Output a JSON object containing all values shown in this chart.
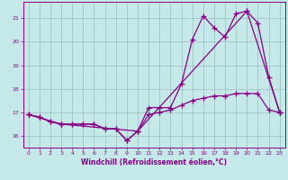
{
  "xlabel": "Windchill (Refroidissement éolien,°C)",
  "xlim": [
    -0.5,
    23.5
  ],
  "ylim": [
    15.5,
    21.7
  ],
  "yticks": [
    16,
    17,
    18,
    19,
    20,
    21
  ],
  "xticks": [
    0,
    1,
    2,
    3,
    4,
    5,
    6,
    7,
    8,
    9,
    10,
    11,
    12,
    13,
    14,
    15,
    16,
    17,
    18,
    19,
    20,
    21,
    22,
    23
  ],
  "bg_color": "#c5e8e8",
  "grid_color": "#9bbcbc",
  "line_color": "#880088",
  "line1_x": [
    0,
    1,
    2,
    3,
    4,
    5,
    6,
    7,
    8,
    9,
    10,
    11,
    12,
    13,
    14,
    15,
    16,
    17,
    18,
    19,
    20,
    21,
    22,
    23
  ],
  "line1_y": [
    16.9,
    16.8,
    16.6,
    16.5,
    16.5,
    16.5,
    16.5,
    16.3,
    16.3,
    15.8,
    16.2,
    17.2,
    17.2,
    17.2,
    18.2,
    20.1,
    21.1,
    20.6,
    20.2,
    21.2,
    21.3,
    20.8,
    18.5,
    17.0
  ],
  "line2_x": [
    0,
    1,
    2,
    3,
    4,
    5,
    6,
    7,
    8,
    9,
    10,
    11,
    12,
    13,
    14,
    15,
    16,
    17,
    18,
    19,
    20,
    21,
    22,
    23
  ],
  "line2_y": [
    16.9,
    16.8,
    16.6,
    16.5,
    16.5,
    16.5,
    16.5,
    16.3,
    16.3,
    15.8,
    16.2,
    16.9,
    17.0,
    17.1,
    17.3,
    17.5,
    17.6,
    17.7,
    17.7,
    17.8,
    17.8,
    17.8,
    17.1,
    17.0
  ],
  "line3_x": [
    0,
    3,
    10,
    20,
    23
  ],
  "line3_y": [
    16.9,
    16.5,
    16.2,
    21.3,
    17.0
  ]
}
